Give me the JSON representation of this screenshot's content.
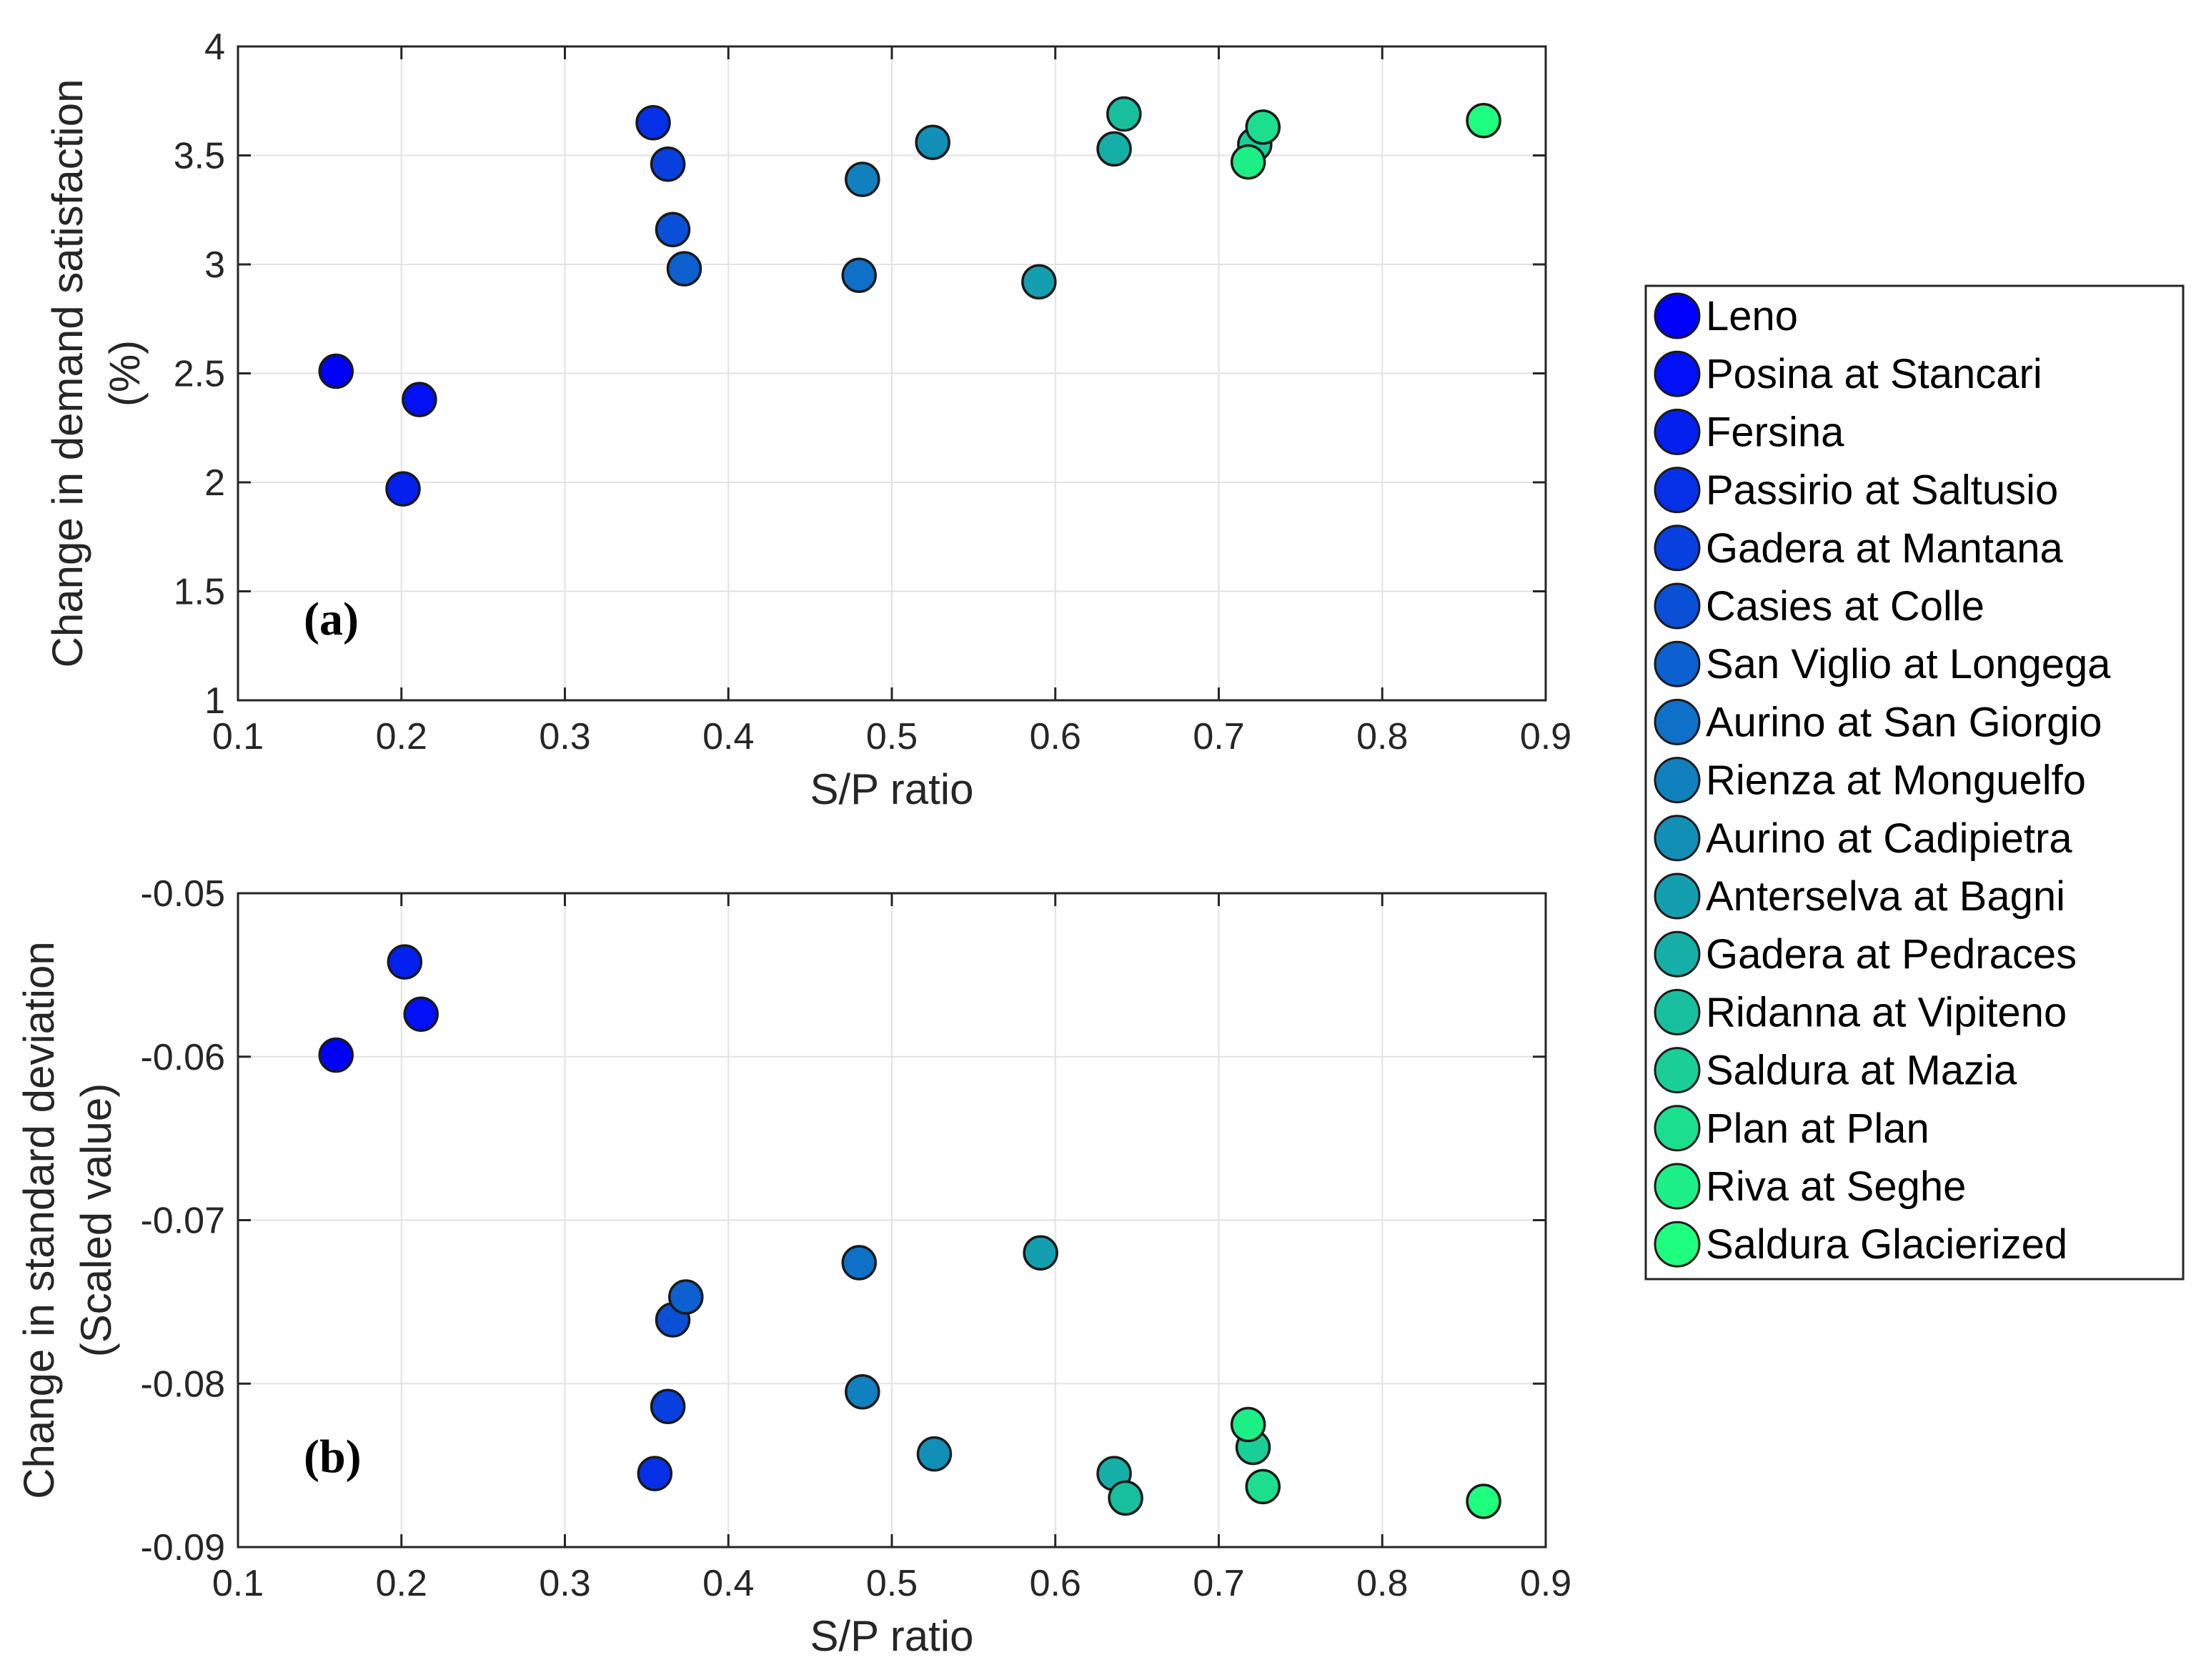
{
  "chart_data": [
    {
      "type": "scatter",
      "panel_label": "(a)",
      "title": "",
      "xlabel": "S/P ratio",
      "ylabel_lines": [
        "Change in demand satisfaction",
        "(%)"
      ],
      "xlim": [
        0.1,
        0.9
      ],
      "ylim": [
        1,
        4
      ],
      "xticks": [
        0.1,
        0.2,
        0.3,
        0.4,
        0.5,
        0.6,
        0.7,
        0.8,
        0.9
      ],
      "yticks": [
        1,
        1.5,
        2,
        2.5,
        3,
        3.5,
        4
      ],
      "xtick_labels": [
        "0.1",
        "0.2",
        "0.3",
        "0.4",
        "0.5",
        "0.6",
        "0.7",
        "0.8",
        "0.9"
      ],
      "ytick_labels": [
        "1",
        "1.5",
        "2",
        "2.5",
        "3",
        "3.5",
        "4"
      ],
      "grid": true,
      "points": [
        {
          "site": 0,
          "x": 0.16,
          "y": 2.51
        },
        {
          "site": 1,
          "x": 0.211,
          "y": 2.38
        },
        {
          "site": 2,
          "x": 0.201,
          "y": 1.97
        },
        {
          "site": 3,
          "x": 0.354,
          "y": 3.65
        },
        {
          "site": 4,
          "x": 0.363,
          "y": 3.46
        },
        {
          "site": 5,
          "x": 0.366,
          "y": 3.16
        },
        {
          "site": 6,
          "x": 0.373,
          "y": 2.98
        },
        {
          "site": 7,
          "x": 0.48,
          "y": 2.95
        },
        {
          "site": 8,
          "x": 0.482,
          "y": 3.39
        },
        {
          "site": 9,
          "x": 0.525,
          "y": 3.56
        },
        {
          "site": 10,
          "x": 0.59,
          "y": 2.92
        },
        {
          "site": 11,
          "x": 0.636,
          "y": 3.53
        },
        {
          "site": 12,
          "x": 0.642,
          "y": 3.69
        },
        {
          "site": 13,
          "x": 0.722,
          "y": 3.55
        },
        {
          "site": 14,
          "x": 0.727,
          "y": 3.63
        },
        {
          "site": 15,
          "x": 0.718,
          "y": 3.47
        },
        {
          "site": 16,
          "x": 0.862,
          "y": 3.66
        }
      ]
    },
    {
      "type": "scatter",
      "panel_label": "(b)",
      "title": "",
      "xlabel": "S/P ratio",
      "ylabel_lines": [
        "Change in standard deviation",
        "(Scaled value)"
      ],
      "xlim": [
        0.1,
        0.9
      ],
      "ylim": [
        -0.09,
        -0.05
      ],
      "xticks": [
        0.1,
        0.2,
        0.3,
        0.4,
        0.5,
        0.6,
        0.7,
        0.8,
        0.9
      ],
      "yticks": [
        -0.09,
        -0.08,
        -0.07,
        -0.06,
        -0.05
      ],
      "xtick_labels": [
        "0.1",
        "0.2",
        "0.3",
        "0.4",
        "0.5",
        "0.6",
        "0.7",
        "0.8",
        "0.9"
      ],
      "ytick_labels": [
        "-0.09",
        "-0.08",
        "-0.07",
        "-0.06",
        "-0.05"
      ],
      "grid": true,
      "points": [
        {
          "site": 0,
          "x": 0.16,
          "y": -0.0599
        },
        {
          "site": 1,
          "x": 0.212,
          "y": -0.0574
        },
        {
          "site": 2,
          "x": 0.202,
          "y": -0.0542
        },
        {
          "site": 3,
          "x": 0.355,
          "y": -0.0855
        },
        {
          "site": 4,
          "x": 0.363,
          "y": -0.0814
        },
        {
          "site": 5,
          "x": 0.366,
          "y": -0.0761
        },
        {
          "site": 6,
          "x": 0.374,
          "y": -0.0747
        },
        {
          "site": 7,
          "x": 0.48,
          "y": -0.0726
        },
        {
          "site": 8,
          "x": 0.482,
          "y": -0.0805
        },
        {
          "site": 9,
          "x": 0.526,
          "y": -0.0843
        },
        {
          "site": 10,
          "x": 0.591,
          "y": -0.072
        },
        {
          "site": 11,
          "x": 0.636,
          "y": -0.0855
        },
        {
          "site": 12,
          "x": 0.643,
          "y": -0.087
        },
        {
          "site": 13,
          "x": 0.721,
          "y": -0.0839
        },
        {
          "site": 14,
          "x": 0.727,
          "y": -0.0863
        },
        {
          "site": 15,
          "x": 0.718,
          "y": -0.0825
        },
        {
          "site": 16,
          "x": 0.862,
          "y": -0.0872
        }
      ]
    }
  ],
  "legend": {
    "placement": "right",
    "items": [
      {
        "name": "Leno",
        "color": "#0000ff"
      },
      {
        "name": "Posina at Stancari",
        "color": "#0210f7"
      },
      {
        "name": "Fersina",
        "color": "#0420ef"
      },
      {
        "name": "Passirio at Saltusio",
        "color": "#0630e7"
      },
      {
        "name": "Gadera at Mantana",
        "color": "#0840df"
      },
      {
        "name": "Casies at Colle",
        "color": "#0a50d7"
      },
      {
        "name": "San Viglio at Longega",
        "color": "#0c60cf"
      },
      {
        "name": "Aurino at San Giorgio",
        "color": "#0e70c7"
      },
      {
        "name": "Rienza at Monguelfo",
        "color": "#1080bf"
      },
      {
        "name": "Aurino at Cadipietra",
        "color": "#118fb7"
      },
      {
        "name": "Anterselva at Bagni",
        "color": "#139faf"
      },
      {
        "name": "Gadera at Pedraces",
        "color": "#15afa7"
      },
      {
        "name": "Ridanna at Vipiteno",
        "color": "#17bf9f"
      },
      {
        "name": "Saldura at Mazia",
        "color": "#19cf97"
      },
      {
        "name": "Plan at Plan",
        "color": "#1bdf8f"
      },
      {
        "name": "Riva at Seghe",
        "color": "#1def87"
      },
      {
        "name": "Saldura Glacierized",
        "color": "#1fff7f"
      }
    ]
  }
}
